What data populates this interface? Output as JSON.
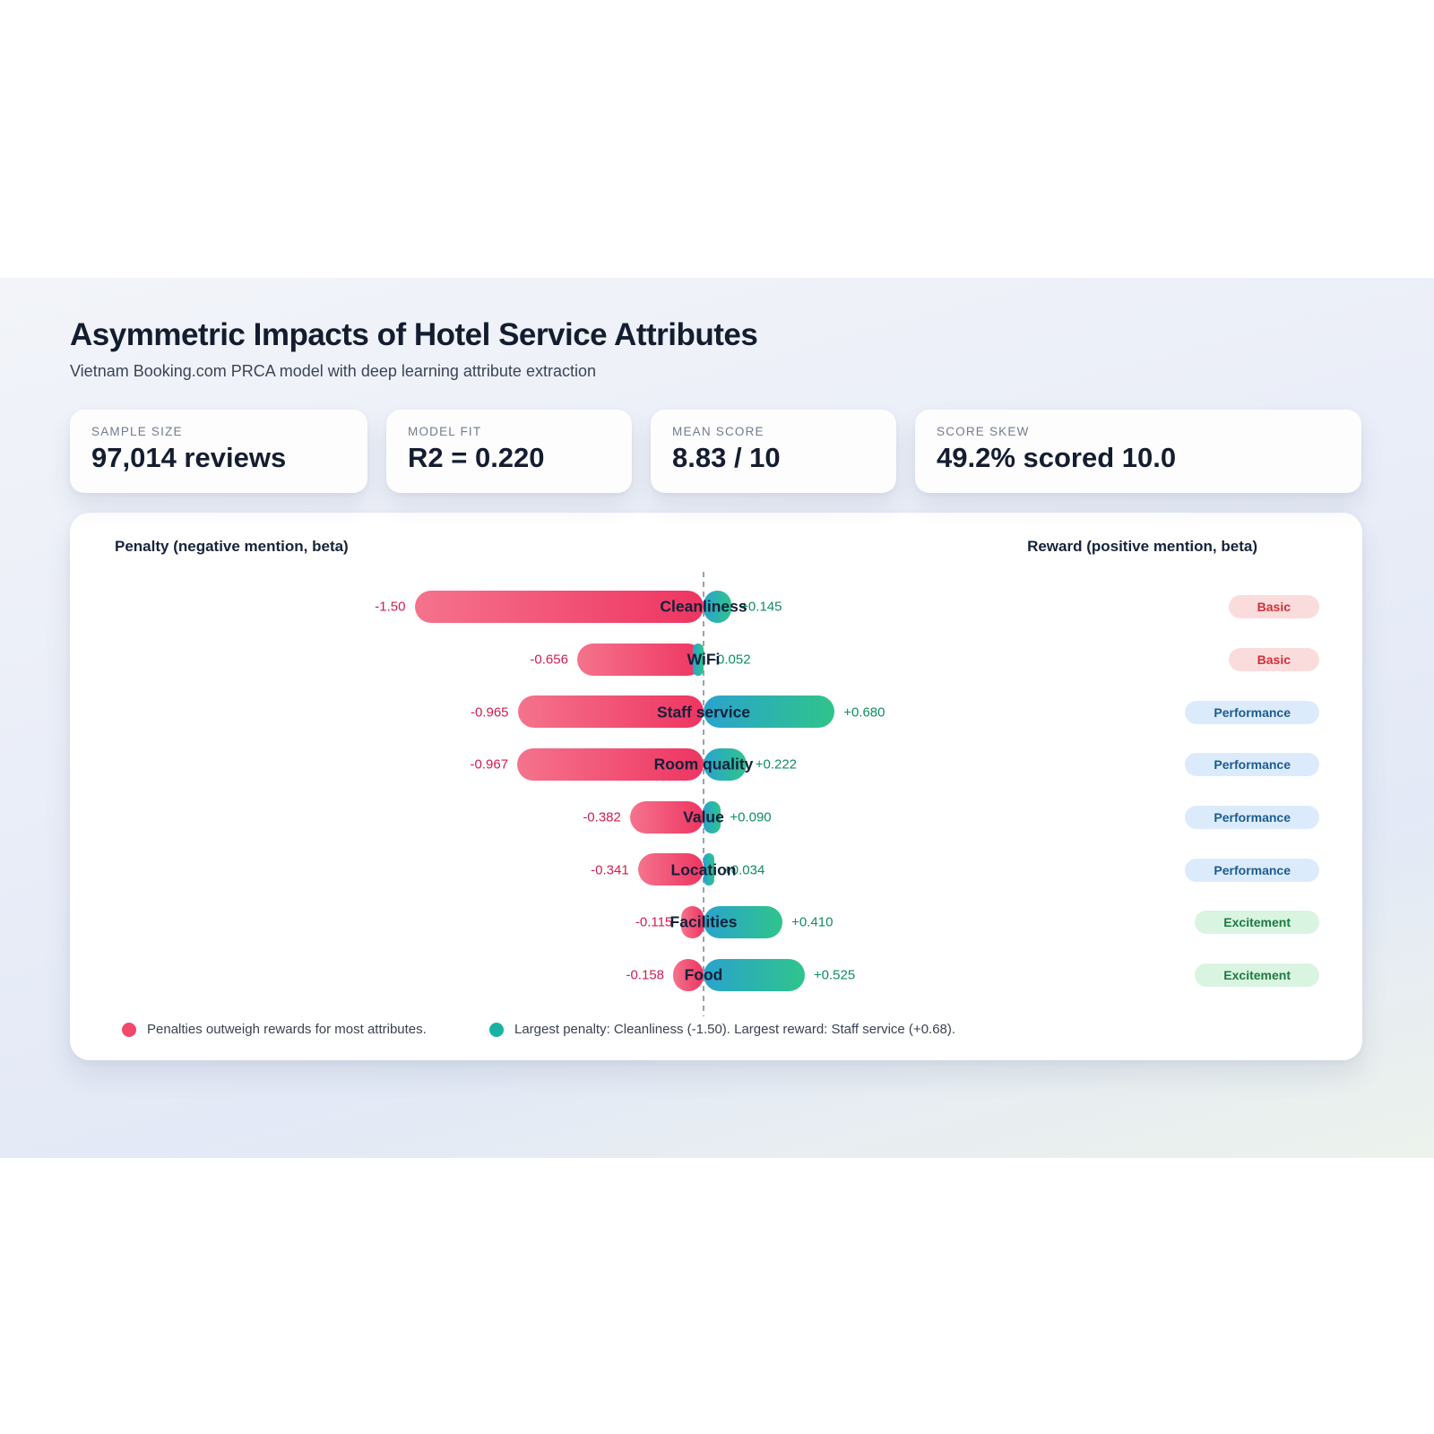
{
  "header": {
    "title": "Asymmetric Impacts of Hotel Service Attributes",
    "subtitle": "Vietnam Booking.com PRCA model with deep learning attribute extraction"
  },
  "stats": [
    {
      "label": "SAMPLE SIZE",
      "value": "97,014 reviews"
    },
    {
      "label": "MODEL FIT",
      "value": "R2 = 0.220"
    },
    {
      "label": "MEAN SCORE",
      "value": "8.83 / 10"
    },
    {
      "label": "SCORE SKEW",
      "value": "49.2% scored 10.0"
    }
  ],
  "chart_data": {
    "type": "bar",
    "variant": "diverging-horizontal",
    "left_header": "Penalty (negative mention, beta)",
    "right_header": "Reward (positive mention, beta)",
    "categories": [
      "Cleanliness",
      "WiFi",
      "Staff service",
      "Room quality",
      "Value",
      "Location",
      "Facilities",
      "Food"
    ],
    "series": [
      {
        "name": "Penalty (negative mention, beta)",
        "values": [
          -1.5,
          -0.656,
          -0.965,
          -0.967,
          -0.382,
          -0.341,
          -0.115,
          -0.158
        ]
      },
      {
        "name": "Reward (positive mention, beta)",
        "values": [
          0.145,
          -0.052,
          0.68,
          0.222,
          0.09,
          0.034,
          0.41,
          0.525
        ]
      }
    ],
    "penalty_labels": [
      "-1.50",
      "-0.656",
      "-0.965",
      "-0.967",
      "-0.382",
      "-0.341",
      "-0.115",
      "-0.158"
    ],
    "reward_labels": [
      "+0.145",
      "-0.052",
      "+0.680",
      "+0.222",
      "+0.090",
      "+0.034",
      "+0.410",
      "+0.525"
    ],
    "badges": [
      "Basic",
      "Basic",
      "Performance",
      "Performance",
      "Performance",
      "Performance",
      "Excitement",
      "Excitement"
    ],
    "xlim": [
      -1.65,
      0.8
    ],
    "grid": false,
    "legend_position": "bottom",
    "legend": [
      {
        "color": "#f2486c",
        "text": "Penalties outweigh rewards for most attributes."
      },
      {
        "color": "#18b2a2",
        "text": "Largest penalty: Cleanliness (-1.50). Largest reward: Staff service (+0.68)."
      }
    ]
  },
  "colors": {
    "penalty_bar_start": "#f5738c",
    "penalty_bar_end": "#ee3561",
    "reward_bar_start": "#2aa3cd",
    "reward_bar_end": "#2fc48b",
    "penalty_text": "#d11d4e",
    "reward_text": "#0c8f5d",
    "badge_basic_bg": "#fbdcdd",
    "badge_basic_text": "#d22f38",
    "badge_performance_bg": "#dcebfb",
    "badge_performance_text": "#1b5c8d",
    "badge_excitement_bg": "#d9f4e1",
    "badge_excitement_text": "#1e7a41"
  }
}
